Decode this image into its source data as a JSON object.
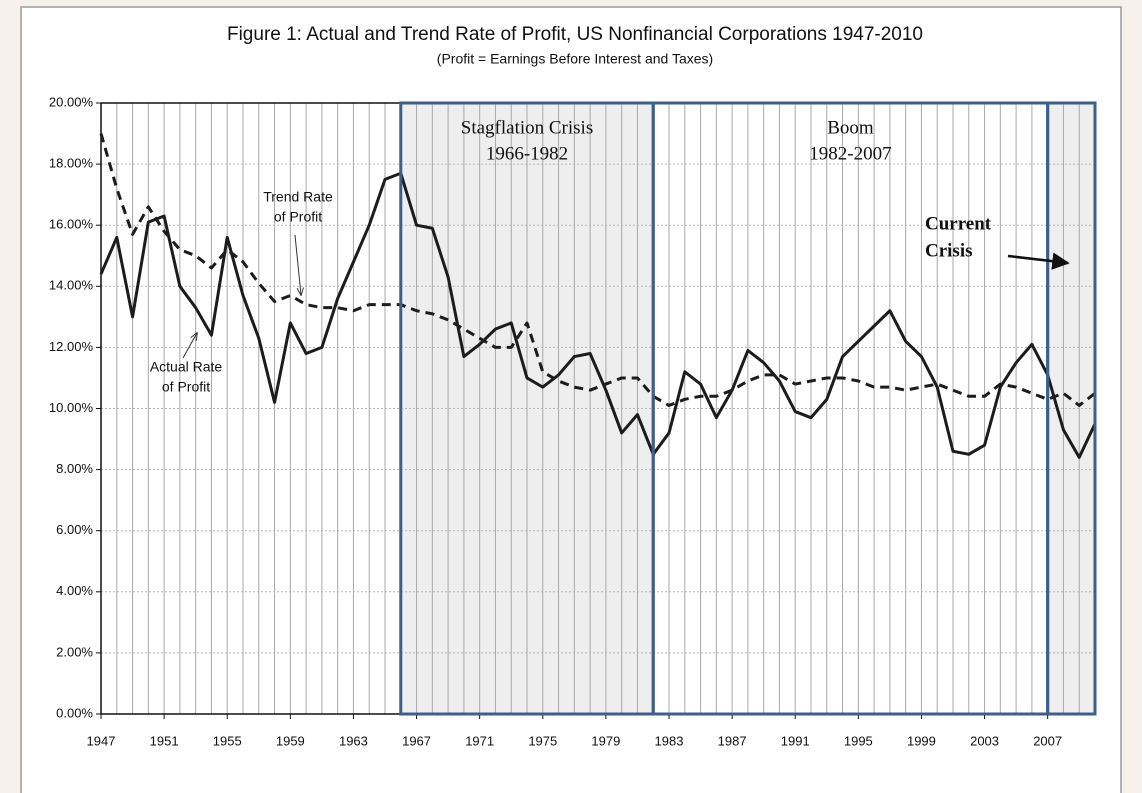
{
  "chart_data": {
    "type": "line",
    "title": "Figure 1: Actual and Trend Rate of Profit, US Nonfinancial Corporations 1947-2010",
    "subtitle": "(Profit = Earnings Before Interest and Taxes)",
    "x": [
      1947,
      1948,
      1949,
      1950,
      1951,
      1952,
      1953,
      1954,
      1955,
      1956,
      1957,
      1958,
      1959,
      1960,
      1961,
      1962,
      1963,
      1964,
      1965,
      1966,
      1967,
      1968,
      1969,
      1970,
      1971,
      1972,
      1973,
      1974,
      1975,
      1976,
      1977,
      1978,
      1979,
      1980,
      1981,
      1982,
      1983,
      1984,
      1985,
      1986,
      1987,
      1988,
      1989,
      1990,
      1991,
      1992,
      1993,
      1994,
      1995,
      1996,
      1997,
      1998,
      1999,
      2000,
      2001,
      2002,
      2003,
      2004,
      2005,
      2006,
      2007,
      2008,
      2009,
      2010
    ],
    "series": [
      {
        "color": "#1c1c1c",
        "dashed": false,
        "values": [
          14.4,
          15.6,
          13.0,
          16.1,
          16.3,
          14.0,
          13.3,
          12.4,
          15.6,
          13.7,
          12.3,
          10.2,
          12.8,
          11.8,
          12.0,
          13.6,
          14.8,
          16.0,
          17.5,
          17.7,
          16.0,
          15.9,
          14.3,
          11.7,
          12.1,
          12.6,
          12.8,
          11.0,
          10.7,
          11.1,
          11.7,
          11.8,
          10.6,
          9.2,
          9.8,
          8.5,
          9.2,
          11.2,
          10.8,
          9.7,
          10.6,
          11.9,
          11.5,
          10.9,
          9.9,
          9.7,
          10.3,
          11.7,
          12.2,
          12.7,
          13.2,
          12.2,
          11.7,
          10.7,
          8.6,
          8.5,
          8.8,
          10.7,
          11.5,
          12.1,
          11.1,
          9.3,
          8.4,
          9.5
        ]
      },
      {
        "color": "#1c1c1c",
        "dashed": true,
        "values": [
          19.0,
          17.2,
          15.7,
          16.6,
          15.8,
          15.2,
          15.0,
          14.6,
          15.2,
          14.8,
          14.1,
          13.5,
          13.7,
          13.4,
          13.3,
          13.3,
          13.2,
          13.4,
          13.4,
          13.4,
          13.2,
          13.1,
          12.9,
          12.6,
          12.3,
          12.0,
          12.0,
          12.8,
          11.2,
          10.9,
          10.7,
          10.6,
          10.8,
          11.0,
          11.0,
          10.4,
          10.1,
          10.3,
          10.4,
          10.4,
          10.6,
          10.9,
          11.1,
          11.1,
          10.8,
          10.9,
          11.0,
          11.0,
          10.9,
          10.7,
          10.7,
          10.6,
          10.7,
          10.8,
          10.6,
          10.4,
          10.4,
          10.8,
          10.7,
          10.5,
          10.3,
          10.5,
          10.1,
          10.5
        ]
      }
    ],
    "xlim": [
      1947,
      2010
    ],
    "xticks": [
      1947,
      1951,
      1955,
      1959,
      1963,
      1967,
      1971,
      1975,
      1979,
      1983,
      1987,
      1991,
      1995,
      1999,
      2003,
      2007
    ],
    "ylim": [
      0,
      20
    ],
    "yticks": [
      {
        "value": 0,
        "label": "0.00%"
      },
      {
        "value": 2,
        "label": "2.00%"
      },
      {
        "value": 4,
        "label": "4.00%"
      },
      {
        "value": 6,
        "label": "6.00%"
      },
      {
        "value": 8,
        "label": "8.00%"
      },
      {
        "value": 10,
        "label": "10.00%"
      },
      {
        "value": 12,
        "label": "12.00%"
      },
      {
        "value": 14,
        "label": "14.00%"
      },
      {
        "value": 16,
        "label": "16.00%"
      },
      {
        "value": 18,
        "label": "18.00%"
      },
      {
        "value": 20,
        "label": "20.00%"
      }
    ],
    "grid": true,
    "regions": [
      {
        "label": "Stagflation Crisis",
        "period": "1966-1982",
        "start": 1966,
        "end": 1982,
        "shaded": true
      },
      {
        "label": "Boom",
        "period": "1982-2007",
        "start": 1982,
        "end": 2007,
        "shaded": false
      },
      {
        "label": [
          "Current",
          "Crisis"
        ],
        "start": 2007,
        "end": 2010,
        "shaded": true
      }
    ],
    "annotations": [
      {
        "lines": [
          "Trend Rate",
          "of Profit"
        ]
      },
      {
        "lines": [
          "Actual Rate",
          "of Profit"
        ]
      }
    ]
  }
}
